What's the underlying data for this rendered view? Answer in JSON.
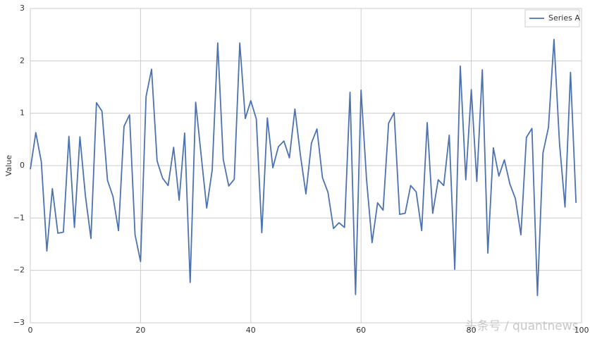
{
  "chart_data": {
    "type": "line",
    "y_label": "Value",
    "watermark": "头条号 / quantnews",
    "x": [
      0,
      1,
      2,
      3,
      4,
      5,
      6,
      7,
      8,
      9,
      10,
      11,
      12,
      13,
      14,
      15,
      16,
      17,
      18,
      19,
      20,
      21,
      22,
      23,
      24,
      25,
      26,
      27,
      28,
      29,
      30,
      31,
      32,
      33,
      34,
      35,
      36,
      37,
      38,
      39,
      40,
      41,
      42,
      43,
      44,
      45,
      46,
      47,
      48,
      49,
      50,
      51,
      52,
      53,
      54,
      55,
      56,
      57,
      58,
      59,
      60,
      61,
      62,
      63,
      64,
      65,
      66,
      67,
      68,
      69,
      70,
      71,
      72,
      73,
      74,
      75,
      76,
      77,
      78,
      79,
      80,
      81,
      82,
      83,
      84,
      85,
      86,
      87,
      88,
      89,
      90,
      91,
      92,
      93,
      94,
      95,
      96,
      97,
      98,
      99
    ],
    "series": [
      {
        "name": "Series A",
        "color": "#4c72b0",
        "values": [
          -0.07,
          0.63,
          0.07,
          -1.63,
          -0.44,
          -1.29,
          -1.27,
          0.56,
          -1.18,
          0.55,
          -0.58,
          -1.39,
          1.2,
          1.04,
          -0.28,
          -0.59,
          -1.24,
          0.75,
          0.97,
          -1.32,
          -1.83,
          1.32,
          1.84,
          0.09,
          -0.24,
          -0.38,
          0.35,
          -0.66,
          0.62,
          -2.23,
          1.21,
          0.19,
          -0.81,
          -0.08,
          2.34,
          0.12,
          -0.39,
          -0.26,
          2.34,
          0.9,
          1.24,
          0.89,
          -1.28,
          0.91,
          -0.04,
          0.36,
          0.47,
          0.15,
          1.08,
          0.2,
          -0.54,
          0.43,
          0.7,
          -0.23,
          -0.51,
          -1.2,
          -1.09,
          -1.18,
          1.4,
          -2.46,
          1.44,
          -0.27,
          -1.47,
          -0.71,
          -0.85,
          0.81,
          1.01,
          -0.93,
          -0.91,
          -0.38,
          -0.5,
          -1.24,
          0.82,
          -0.91,
          -0.27,
          -0.38,
          0.58,
          -1.98,
          1.9,
          -0.27,
          1.45,
          -0.3,
          1.83,
          -1.67,
          0.34,
          -0.2,
          0.11,
          -0.35,
          -0.63,
          -1.32,
          0.54,
          0.71,
          -2.48,
          0.24,
          0.73,
          2.41,
          0.43,
          -0.79,
          1.78,
          -0.71
        ]
      }
    ],
    "xlim": [
      0,
      100
    ],
    "xticks": [
      0,
      20,
      40,
      60,
      80,
      100
    ],
    "ylim": [
      -3,
      3
    ],
    "yticks": [
      {
        "value": -3,
        "label": "−3"
      },
      {
        "value": -2,
        "label": "−2"
      },
      {
        "value": -1,
        "label": "−1"
      },
      0,
      1,
      2,
      3
    ],
    "grid": true,
    "legend": "upper right"
  }
}
